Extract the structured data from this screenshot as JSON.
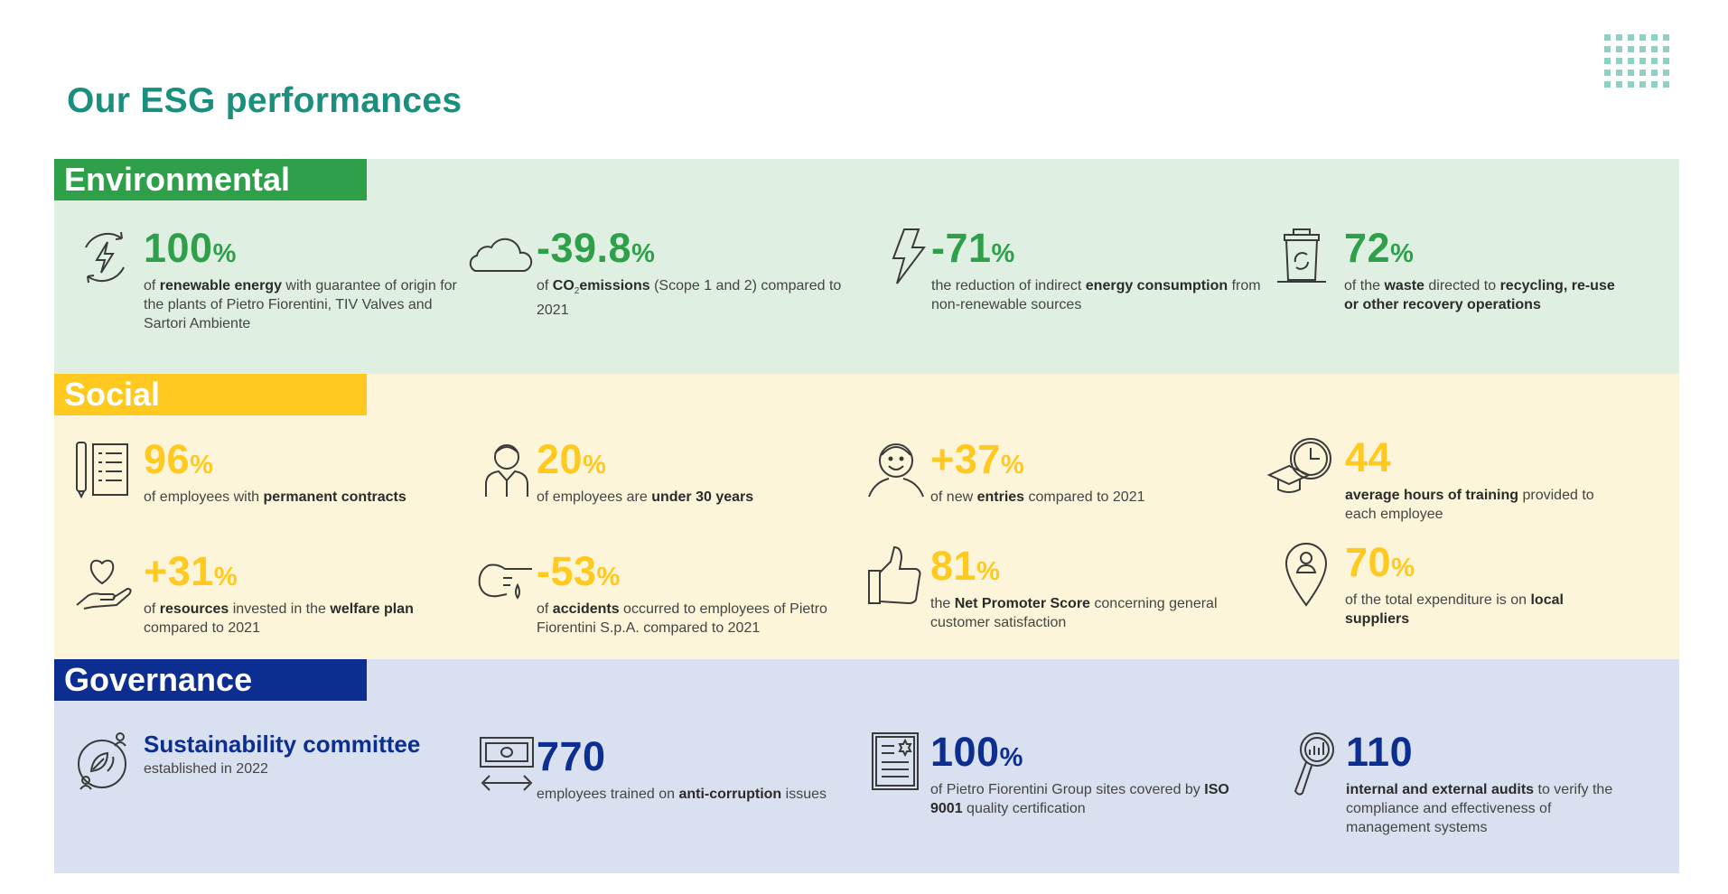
{
  "title": "Our ESG performances",
  "colors": {
    "title": "#1a8f7d",
    "environmental": "#2ea04a",
    "social": "#ffc91f",
    "governance": "#0d2e91"
  },
  "environmental": {
    "label": "Environmental",
    "items": [
      {
        "icon": "renewable-energy-icon",
        "value": "100",
        "unit": "%",
        "desc": [
          "of ",
          {
            "b": "renewable energy"
          },
          " with guarantee of origin for the plants of Pietro Fiorentini, TIV Valves and Sartori Ambiente"
        ]
      },
      {
        "icon": "cloud-icon",
        "value": "-39.8",
        "unit": "%",
        "desc": [
          "of ",
          {
            "b": "CO"
          },
          {
            "sub": "2"
          },
          {
            "b": "emissions"
          },
          " (Scope 1 and 2) compared to 2021"
        ]
      },
      {
        "icon": "lightning-icon",
        "value": "-71",
        "unit": "%",
        "desc": [
          "the reduction of indirect ",
          {
            "b": "energy consumption"
          },
          " from non-renewable sources"
        ]
      },
      {
        "icon": "recycling-bin-icon",
        "value": "72",
        "unit": "%",
        "desc": [
          "of the ",
          {
            "b": "waste"
          },
          " directed to ",
          {
            "b": "recycling, re-use or other recovery operations"
          }
        ]
      }
    ]
  },
  "social": {
    "label": "Social",
    "items": [
      {
        "icon": "contract-icon",
        "value": "96",
        "unit": "%",
        "desc": [
          "of employees with ",
          {
            "b": "permanent contracts"
          }
        ]
      },
      {
        "icon": "young-employee-icon",
        "value": "20",
        "unit": "%",
        "desc": [
          "of employees are ",
          {
            "b": "under 30 years"
          }
        ]
      },
      {
        "icon": "smiling-person-icon",
        "value": "+37",
        "unit": "%",
        "desc": [
          "of new ",
          {
            "b": "entries"
          },
          " compared to 2021"
        ]
      },
      {
        "icon": "training-clock-icon",
        "value": "44",
        "unit": "",
        "desc": [
          {
            "b": "average hours of training"
          },
          " provided to each employee"
        ]
      },
      {
        "icon": "heart-hand-icon",
        "value": "+31",
        "unit": "%",
        "desc": [
          "of ",
          {
            "b": "resources"
          },
          " invested in the ",
          {
            "b": "welfare plan"
          },
          " compared to 2021"
        ]
      },
      {
        "icon": "pointing-hand-icon",
        "value": "-53",
        "unit": "%",
        "desc": [
          "of ",
          {
            "b": "accidents"
          },
          " occurred to employees of Pietro Fiorentini S.p.A. compared to 2021"
        ]
      },
      {
        "icon": "thumbs-up-icon",
        "value": "81",
        "unit": "%",
        "desc": [
          "the ",
          {
            "b": "Net Promoter Score"
          },
          " concerning general customer satisfaction"
        ]
      },
      {
        "icon": "location-pin-icon",
        "value": "70",
        "unit": "%",
        "desc": [
          "of the total expenditure is on ",
          {
            "b": "local suppliers"
          }
        ]
      }
    ]
  },
  "governance": {
    "label": "Governance",
    "items": [
      {
        "icon": "sustainability-committee-icon",
        "value": "",
        "unit": "",
        "heading": "Sustainability committee",
        "desc": [
          "established in 2022"
        ]
      },
      {
        "icon": "banknote-icon",
        "value": "770",
        "unit": "",
        "desc": [
          "employees trained on ",
          {
            "b": "anti-corruption"
          },
          " issues"
        ]
      },
      {
        "icon": "certificate-icon",
        "value": "100",
        "unit": "%",
        "desc": [
          "of Pietro Fiorentini Group sites covered by ",
          {
            "b": "ISO 9001"
          },
          " quality certification"
        ]
      },
      {
        "icon": "audit-magnifier-icon",
        "value": "110",
        "unit": "",
        "desc": [
          {
            "b": "internal and external audits"
          },
          " to verify the compliance and effectiveness of management systems"
        ]
      }
    ]
  }
}
